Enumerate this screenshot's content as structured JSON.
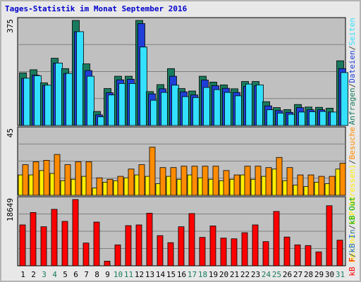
{
  "page": {
    "title": "Tages-Statistik im Monat September 2016",
    "title_color": "#0000cc"
  },
  "chart_data": [
    {
      "type": "bar",
      "name_panel": "requests",
      "ymax_label": "375",
      "ylim": [
        0,
        375
      ],
      "grid": true,
      "categories": [
        "1",
        "2",
        "3",
        "4",
        "5",
        "6",
        "7",
        "8",
        "9",
        "10",
        "11",
        "12",
        "13",
        "14",
        "15",
        "16",
        "17",
        "18",
        "19",
        "20",
        "21",
        "22",
        "23",
        "24",
        "25",
        "26",
        "27",
        "28",
        "29",
        "30",
        "31"
      ],
      "weekend_days": [
        "3",
        "4",
        "10",
        "11",
        "17",
        "18",
        "24",
        "25",
        "31"
      ],
      "series": [
        {
          "name": "Anfragen",
          "color": "#1a7a5e",
          "values": [
            188,
            199,
            152,
            240,
            203,
            375,
            220,
            50,
            132,
            176,
            176,
            375,
            121,
            146,
            203,
            132,
            123,
            176,
            155,
            145,
            131,
            157,
            157,
            85,
            64,
            57,
            75,
            66,
            65,
            62,
            231
          ]
        },
        {
          "name": "Dateien",
          "color": "#1f3fd8",
          "values": [
            168,
            180,
            143,
            223,
            186,
            335,
            196,
            38,
            117,
            163,
            165,
            364,
            113,
            131,
            176,
            120,
            109,
            162,
            142,
            133,
            118,
            140,
            142,
            70,
            53,
            47,
            64,
            56,
            56,
            48,
            203
          ]
        },
        {
          "name": "Seiten",
          "color": "#33e0ff",
          "values": [
            169,
            178,
            144,
            223,
            186,
            335,
            176,
            31,
            109,
            150,
            150,
            280,
            90,
            118,
            144,
            103,
            100,
            136,
            128,
            118,
            106,
            148,
            145,
            56,
            44,
            40,
            48,
            49,
            50,
            48,
            189
          ]
        }
      ],
      "legend_text": [
        "Anfragen",
        "/",
        "Dateien",
        "/",
        "Seiten"
      ]
    },
    {
      "type": "bar",
      "name_panel": "visits",
      "ymax_label": "45",
      "ylim": [
        0,
        45
      ],
      "grid": true,
      "series": [
        {
          "name": "Rechner (IP-Adressen)",
          "color": "#ffee00",
          "values": [
            14,
            14,
            17,
            15,
            10,
            11,
            13,
            5,
            9,
            10,
            12,
            14,
            13,
            8,
            13,
            11,
            14,
            12,
            11,
            10,
            11,
            14,
            11,
            13,
            18,
            10,
            7,
            6,
            9,
            8,
            18
          ]
        },
        {
          "name": "Besuche",
          "color": "#ff8c00",
          "values": [
            21,
            23,
            24,
            28,
            21,
            23,
            23,
            12,
            11,
            13,
            18,
            21,
            33,
            19,
            19,
            20,
            20,
            20,
            20,
            17,
            14,
            20,
            20,
            19,
            26,
            19,
            14,
            14,
            13,
            13,
            22
          ]
        }
      ],
      "legend_text": [
        "Rechner (IP-Adressen)",
        "/",
        "Besuche"
      ]
    },
    {
      "type": "bar",
      "name_panel": "traffic",
      "ymax_label": "18649",
      "ylim": [
        0,
        18649
      ],
      "grid": true,
      "series": [
        {
          "name": "kB F",
          "color": "#ff0000",
          "values": [
            11500,
            15000,
            11000,
            15900,
            12500,
            18649,
            6400,
            12300,
            1300,
            5900,
            11300,
            11500,
            14800,
            8500,
            6500,
            11000,
            14700,
            8000,
            11200,
            7800,
            7600,
            9300,
            11500,
            6800,
            15300,
            8100,
            5900,
            5700,
            3900,
            16900,
            7200
          ]
        }
      ],
      "legend_text": [
        "kB F",
        "/",
        "kB In",
        "/",
        "kB Out"
      ],
      "legend_colors": [
        "#ff0000",
        "#444444",
        "#1f6fd8",
        "#444444",
        "#00aa00"
      ]
    }
  ]
}
